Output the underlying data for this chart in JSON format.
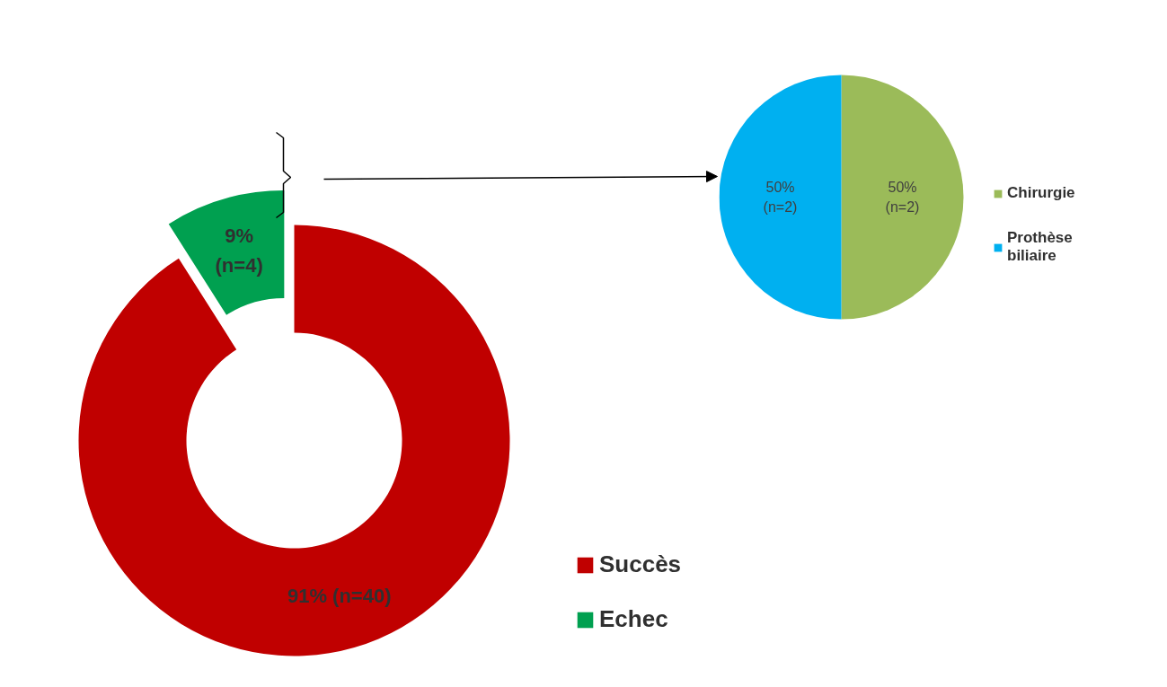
{
  "chart_data": [
    {
      "type": "pie",
      "categories": [
        "Chirurgie",
        "Prothèse\nbiliaire"
      ],
      "values": [
        50,
        50
      ],
      "colors": [
        "#9bbb59",
        "#00b0f0"
      ],
      "value_labels": [
        "50%\n(n=2)",
        "50%\n(n=2)"
      ],
      "legend": "right"
    },
    {
      "type": "donut",
      "categories": [
        "Succès",
        "Echec"
      ],
      "values": [
        91,
        9
      ],
      "colors": [
        "#c00000",
        "#00a050"
      ],
      "value_labels": [
        "91% (n=40)",
        "9%\n(n=4)"
      ],
      "legend": "right"
    }
  ]
}
